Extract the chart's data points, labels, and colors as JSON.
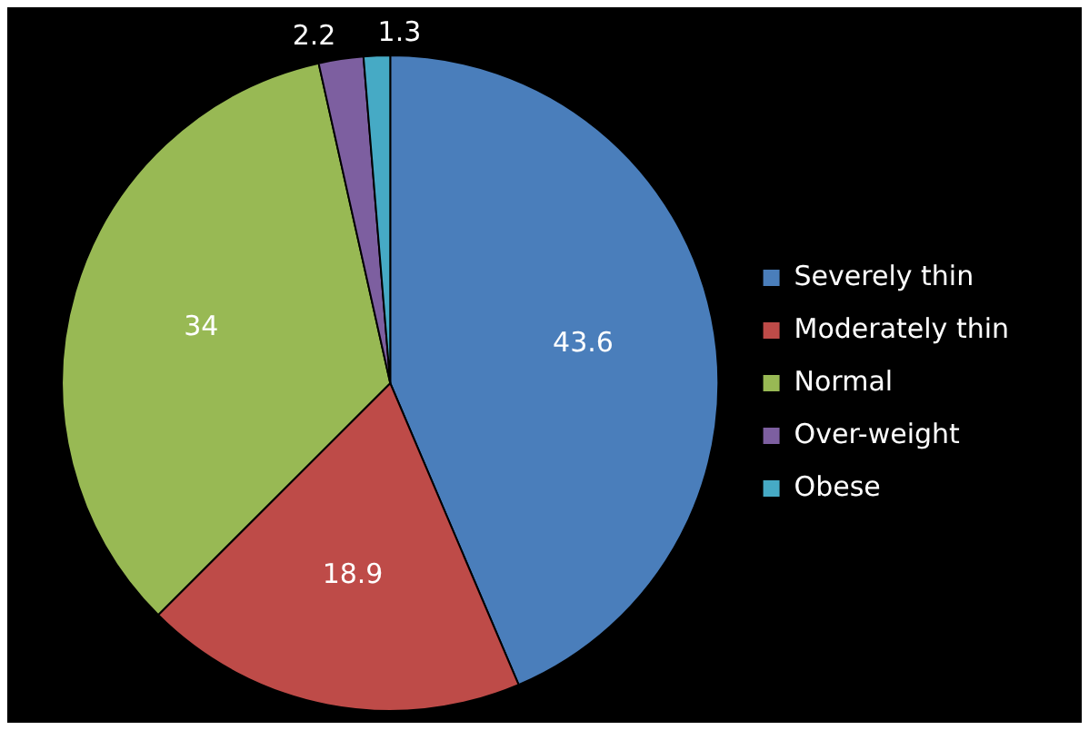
{
  "chart_data": {
    "type": "pie",
    "categories": [
      "Severely thin",
      "Moderately thin",
      "Normal",
      "Over-weight",
      "Obese"
    ],
    "values": [
      43.6,
      18.9,
      34,
      2.2,
      1.3
    ],
    "colors": [
      "#4a7ebb",
      "#be4b48",
      "#98b954",
      "#7d5fa0",
      "#46aac5"
    ],
    "data_labels": true,
    "legend": "right"
  }
}
